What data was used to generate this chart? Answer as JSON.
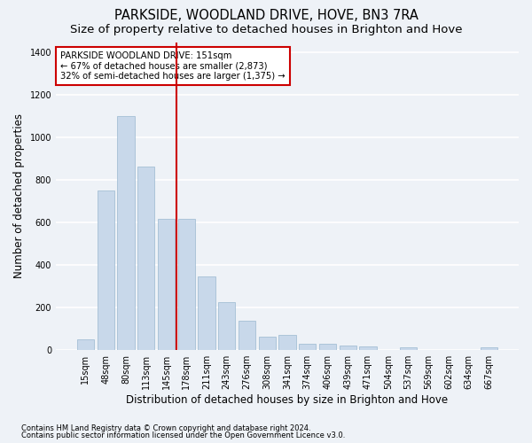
{
  "title": "PARKSIDE, WOODLAND DRIVE, HOVE, BN3 7RA",
  "subtitle": "Size of property relative to detached houses in Brighton and Hove",
  "xlabel": "Distribution of detached houses by size in Brighton and Hove",
  "ylabel": "Number of detached properties",
  "footnote1": "Contains HM Land Registry data © Crown copyright and database right 2024.",
  "footnote2": "Contains public sector information licensed under the Open Government Licence v3.0.",
  "categories": [
    "15sqm",
    "48sqm",
    "80sqm",
    "113sqm",
    "145sqm",
    "178sqm",
    "211sqm",
    "243sqm",
    "276sqm",
    "308sqm",
    "341sqm",
    "374sqm",
    "406sqm",
    "439sqm",
    "471sqm",
    "504sqm",
    "537sqm",
    "569sqm",
    "602sqm",
    "634sqm",
    "667sqm"
  ],
  "values": [
    50,
    750,
    1100,
    865,
    615,
    615,
    345,
    225,
    135,
    60,
    70,
    30,
    30,
    20,
    15,
    0,
    12,
    0,
    0,
    0,
    12
  ],
  "bar_color": "#c8d8ea",
  "bar_edge_color": "#9ab8d0",
  "vline_x_index": 4,
  "vline_color": "#cc0000",
  "annotation_text": "PARKSIDE WOODLAND DRIVE: 151sqm\n← 67% of detached houses are smaller (2,873)\n32% of semi-detached houses are larger (1,375) →",
  "annotation_box_color": "white",
  "annotation_box_edge": "#cc0000",
  "ylim": [
    0,
    1450
  ],
  "yticks": [
    0,
    200,
    400,
    600,
    800,
    1000,
    1200,
    1400
  ],
  "bg_color": "#eef2f7",
  "plot_bg_color": "#eef2f7",
  "grid_color": "white",
  "title_fontsize": 10.5,
  "subtitle_fontsize": 9.5,
  "axis_label_fontsize": 8.5,
  "tick_fontsize": 7,
  "footnote_fontsize": 6
}
